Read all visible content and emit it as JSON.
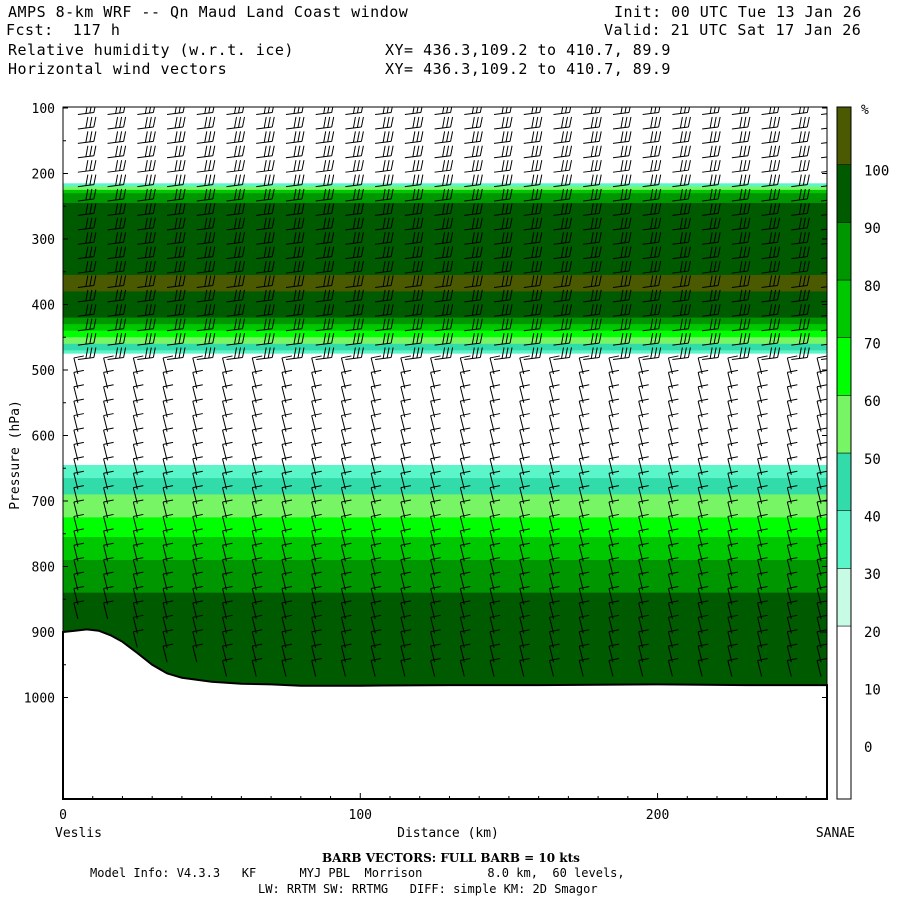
{
  "header": {
    "title": "AMPS 8-km WRF -- Qn Maud Land Coast window",
    "forecast": "Fcst:  117 h",
    "init": "Init: 00 UTC Tue 13 Jan 26",
    "valid": "Valid: 21 UTC Sat 17 Jan 26",
    "field1": "Relative humidity (w.r.t. ice)",
    "field2": "Horizontal wind vectors",
    "xy1": "XY= 436.3,109.2 to 410.7, 89.9",
    "xy2": "XY= 436.3,109.2 to 410.7, 89.9"
  },
  "chart_data": {
    "type": "heatmap",
    "title": "AMPS 8-km WRF -- Qn Maud Land Coast window",
    "xlabel": "Distance (km)",
    "ylabel": "Pressure (hPa)",
    "xlim": [
      0,
      257
    ],
    "ylim": [
      1050,
      100
    ],
    "x_ticks": [
      0,
      100,
      200
    ],
    "y_ticks": [
      100,
      200,
      300,
      400,
      500,
      600,
      700,
      800,
      900,
      1000
    ],
    "x_start_label": "Veslis",
    "x_end_label": "SANAE",
    "colorbar": {
      "unit": "%",
      "tick_labels": [
        0,
        10,
        20,
        30,
        40,
        50,
        60,
        70,
        80,
        90,
        100
      ],
      "levels": [
        30,
        40,
        50,
        60,
        70,
        80,
        90,
        100
      ],
      "colors": [
        "#ffffff",
        "#c8fbe6",
        "#5af5c8",
        "#32dcaa",
        "#78f564",
        "#00ff00",
        "#00c800",
        "#009600",
        "#005a00",
        "#4b5a00"
      ]
    },
    "terrain": {
      "x": [
        0,
        4,
        8,
        12,
        16,
        20,
        25,
        30,
        35,
        40,
        50,
        60,
        70,
        80,
        100,
        130,
        160,
        200,
        230,
        257
      ],
      "p": [
        900,
        898,
        896,
        898,
        905,
        915,
        932,
        950,
        963,
        970,
        976,
        979,
        980,
        982,
        982,
        981,
        981,
        980,
        981,
        981
      ]
    },
    "rh_profile": [
      {
        "p": 100,
        "rh": 0
      },
      {
        "p": 210,
        "rh": 0
      },
      {
        "p": 220,
        "rh": 40
      },
      {
        "p": 230,
        "rh": 80
      },
      {
        "p": 245,
        "rh": 90
      },
      {
        "p": 280,
        "rh": 96
      },
      {
        "p": 330,
        "rh": 96
      },
      {
        "p": 370,
        "rh": 102
      },
      {
        "p": 400,
        "rh": 96
      },
      {
        "p": 420,
        "rh": 90
      },
      {
        "p": 440,
        "rh": 70
      },
      {
        "p": 460,
        "rh": 50
      },
      {
        "p": 475,
        "rh": 35
      },
      {
        "p": 485,
        "rh": 0
      },
      {
        "p": 600,
        "rh": 0
      },
      {
        "p": 650,
        "rh": 35
      },
      {
        "p": 690,
        "rh": 50
      },
      {
        "p": 740,
        "rh": 65
      },
      {
        "p": 790,
        "rh": 80
      },
      {
        "p": 840,
        "rh": 90
      },
      {
        "p": 900,
        "rh": 96
      },
      {
        "p": 1000,
        "rh": 96
      }
    ],
    "barb_note": "BARB VECTORS:  FULL BARB = 10 kts"
  },
  "footer": {
    "line1": "Model Info: V4.3.3   KF      MYJ PBL  Morrison         8.0 km,  60 levels,",
    "line2": "LW: RRTM SW: RRTMG   DIFF: simple KM: 2D Smagor"
  }
}
